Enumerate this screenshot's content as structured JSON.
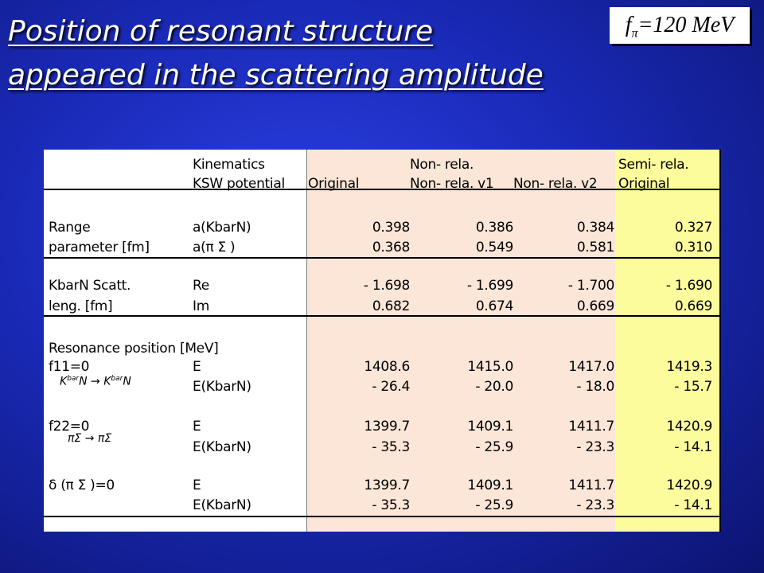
{
  "title": {
    "line1": "Position of resonant structure ",
    "line2": "appeared in the scattering amplitude"
  },
  "badge": {
    "f": "f",
    "sub": "π",
    "rest": "=120 MeV"
  },
  "table": {
    "header": {
      "kinematics": "Kinematics",
      "ksw": "KSW potential",
      "nonrela": "Non- rela.",
      "semirela": "Semi- rela.",
      "cols": [
        "Original",
        "Non- rela. v1",
        "Non- rela. v2",
        "Original"
      ]
    },
    "rows": [
      {
        "label": "Range",
        "param": "a(KbarN)",
        "vals": [
          "0.398",
          "0.386",
          "0.384",
          "0.327"
        ]
      },
      {
        "label": "parameter [fm]",
        "param": "a(π Σ )",
        "vals": [
          "0.368",
          "0.549",
          "0.581",
          "0.310"
        ]
      },
      {
        "label": "KbarN Scatt.",
        "param": "Re",
        "vals": [
          "- 1.698",
          "- 1.699",
          "- 1.700",
          "- 1.690"
        ]
      },
      {
        "label": "leng. [fm]",
        "param": "Im",
        "vals": [
          "0.682",
          "0.674",
          "0.669",
          "0.669"
        ]
      },
      {
        "label": "Resonance position [MeV]",
        "param": "",
        "vals": [
          "",
          "",
          "",
          ""
        ]
      },
      {
        "label": "f11=0",
        "param": "E",
        "vals": [
          "1408.6",
          "1415.0",
          "1417.0",
          "1419.3"
        ]
      },
      {
        "label": "",
        "param": "E(KbarN)",
        "vals": [
          "- 26.4",
          "- 20.0",
          "- 18.0",
          "- 15.7"
        ]
      },
      {
        "label": "f22=0",
        "param": "E",
        "vals": [
          "1399.7",
          "1409.1",
          "1411.7",
          "1420.9"
        ]
      },
      {
        "label": "",
        "param": "E(KbarN)",
        "vals": [
          "- 35.3",
          "- 25.9",
          "- 23.3",
          "- 14.1"
        ]
      },
      {
        "label": "δ (π Σ )=0",
        "param": "E",
        "vals": [
          "1399.7",
          "1409.1",
          "1411.7",
          "1420.9"
        ]
      },
      {
        "label": "",
        "param": "E(KbarN)",
        "vals": [
          "- 35.3",
          "- 25.9",
          "- 23.3",
          "- 14.1"
        ]
      }
    ],
    "annotations": {
      "kbarn_left": "K",
      "kbarn_sup": "bar",
      "kbarn_mid": "N → K",
      "kbarn_sup2": "bar",
      "kbarn_right": "N",
      "pisigma": "πΣ → πΣ"
    }
  }
}
